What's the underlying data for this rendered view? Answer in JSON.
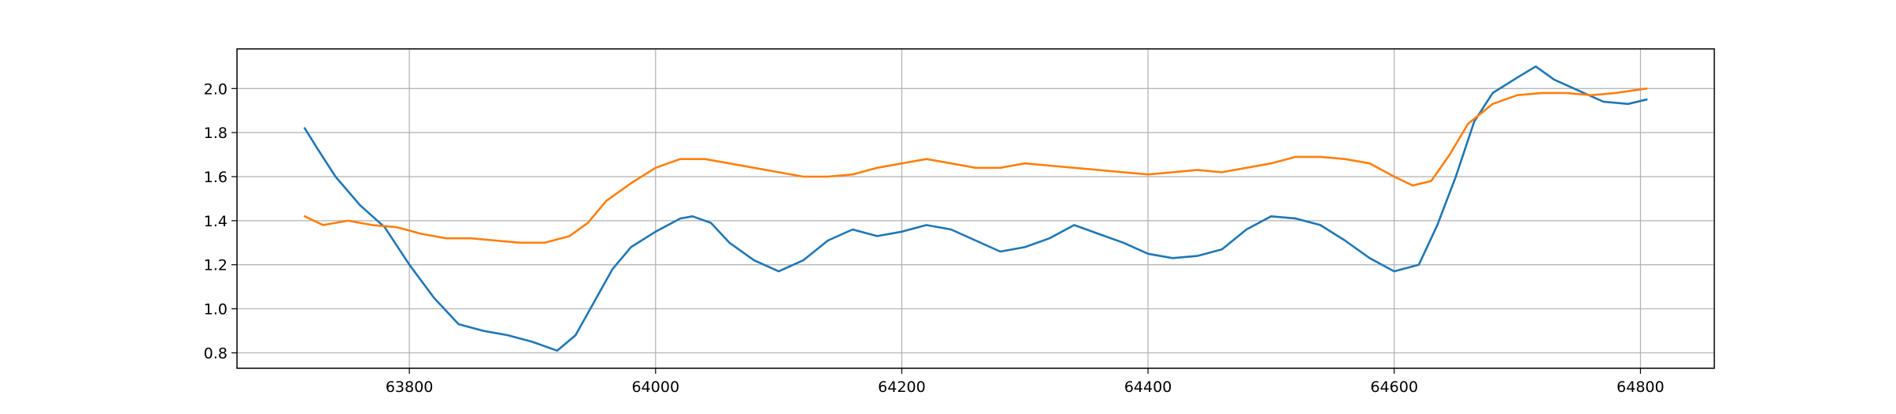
{
  "chart_data": {
    "type": "line",
    "title": "",
    "xlabel": "",
    "ylabel": "",
    "xlim": [
      63660,
      64860
    ],
    "ylim": [
      0.73,
      2.18
    ],
    "grid": true,
    "xticks": [
      63800,
      64000,
      64200,
      64400,
      64600,
      64800
    ],
    "xtick_labels": [
      "63800",
      "64000",
      "64200",
      "64400",
      "64600",
      "64800"
    ],
    "yticks": [
      0.8,
      1.0,
      1.2,
      1.4,
      1.6,
      1.8,
      2.0
    ],
    "ytick_labels": [
      "0.8",
      "1.0",
      "1.2",
      "1.4",
      "1.6",
      "1.8",
      "2.0"
    ],
    "series": [
      {
        "color": "#1f77b4",
        "x": [
          63715,
          63725,
          63740,
          63760,
          63780,
          63800,
          63820,
          63840,
          63860,
          63880,
          63900,
          63920,
          63935,
          63950,
          63965,
          63980,
          64000,
          64020,
          64030,
          64045,
          64060,
          64080,
          64100,
          64120,
          64140,
          64160,
          64180,
          64200,
          64220,
          64240,
          64260,
          64280,
          64300,
          64320,
          64340,
          64360,
          64380,
          64400,
          64420,
          64440,
          64460,
          64480,
          64500,
          64520,
          64540,
          64560,
          64580,
          64600,
          64620,
          64635,
          64650,
          64665,
          64680,
          64700,
          64715,
          64730,
          64750,
          64770,
          64790,
          64805
        ],
        "y": [
          1.82,
          1.73,
          1.6,
          1.47,
          1.37,
          1.2,
          1.05,
          0.93,
          0.9,
          0.88,
          0.85,
          0.81,
          0.88,
          1.03,
          1.18,
          1.28,
          1.35,
          1.41,
          1.42,
          1.39,
          1.3,
          1.22,
          1.17,
          1.22,
          1.31,
          1.36,
          1.33,
          1.35,
          1.38,
          1.36,
          1.31,
          1.26,
          1.28,
          1.32,
          1.38,
          1.34,
          1.3,
          1.25,
          1.23,
          1.24,
          1.27,
          1.36,
          1.42,
          1.41,
          1.38,
          1.31,
          1.23,
          1.17,
          1.2,
          1.38,
          1.6,
          1.85,
          1.98,
          2.05,
          2.1,
          2.04,
          1.99,
          1.94,
          1.93,
          1.95
        ]
      },
      {
        "color": "#ff7f0e",
        "x": [
          63715,
          63730,
          63750,
          63770,
          63790,
          63810,
          63830,
          63850,
          63870,
          63890,
          63910,
          63930,
          63945,
          63960,
          63980,
          64000,
          64020,
          64040,
          64060,
          64080,
          64100,
          64120,
          64140,
          64160,
          64180,
          64200,
          64220,
          64240,
          64260,
          64280,
          64300,
          64320,
          64340,
          64360,
          64380,
          64400,
          64420,
          64440,
          64460,
          64480,
          64500,
          64520,
          64540,
          64560,
          64580,
          64600,
          64615,
          64630,
          64645,
          64660,
          64680,
          64700,
          64720,
          64740,
          64760,
          64780,
          64805
        ],
        "y": [
          1.42,
          1.38,
          1.4,
          1.38,
          1.37,
          1.34,
          1.32,
          1.32,
          1.31,
          1.3,
          1.3,
          1.33,
          1.39,
          1.49,
          1.57,
          1.64,
          1.68,
          1.68,
          1.66,
          1.64,
          1.62,
          1.6,
          1.6,
          1.61,
          1.64,
          1.66,
          1.68,
          1.66,
          1.64,
          1.64,
          1.66,
          1.65,
          1.64,
          1.63,
          1.62,
          1.61,
          1.62,
          1.63,
          1.62,
          1.64,
          1.66,
          1.69,
          1.69,
          1.68,
          1.66,
          1.6,
          1.56,
          1.58,
          1.7,
          1.84,
          1.93,
          1.97,
          1.98,
          1.98,
          1.97,
          1.98,
          2.0
        ]
      }
    ]
  }
}
